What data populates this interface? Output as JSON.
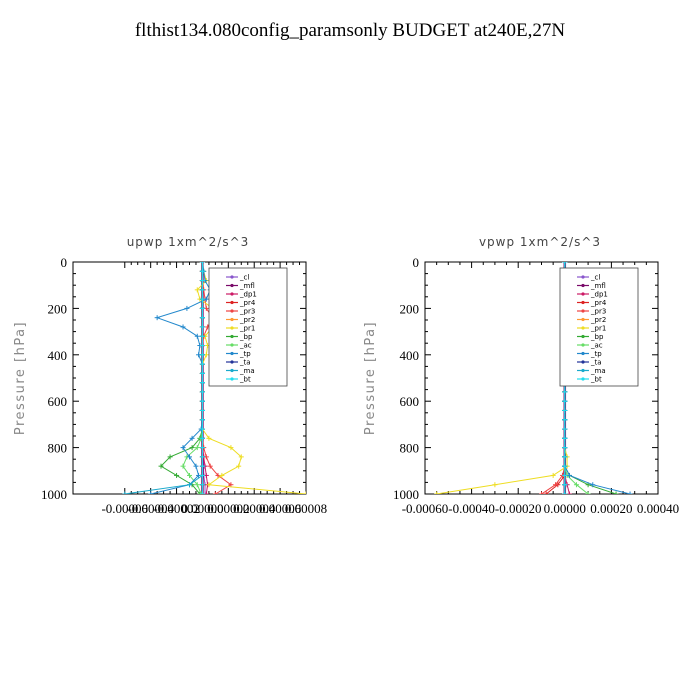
{
  "title": "flthist134.080config_paramsonly  BUDGET at240E,27N",
  "legend_entries": [
    "_cl",
    "_mfl",
    "_dp1",
    "_pr4",
    "_pr3",
    "_pr2",
    "_pr1",
    "_bp",
    "_ac",
    "_tp",
    "_ta",
    "_ma",
    "_bt"
  ],
  "colors": {
    "_cl": "#8855cc",
    "_mfl": "#7a0a6a",
    "_dp1": "#cc1a66",
    "_pr4": "#dd2222",
    "_pr3": "#ee4444",
    "_pr2": "#ff9933",
    "_pr1": "#eedd22",
    "_bp": "#33aa33",
    "_ac": "#66dd66",
    "_tp": "#2288cc",
    "_ta": "#223399",
    "_ma": "#1aaacc",
    "_bt": "#22ddee"
  },
  "chart_data": [
    {
      "type": "line",
      "title": "upwp   1xm^2/s^3",
      "ylabel": "Pressure [hPa]",
      "xlim": [
        -0.0001,
        8e-05
      ],
      "ylim": [
        1000,
        0
      ],
      "xticks": [
        "-0.00006",
        "-0.00004",
        "-0.00002",
        "0.00000",
        "0.00002",
        "0.00004",
        "0.00006",
        "0.00008"
      ],
      "xtick_values": [
        -6e-05,
        -4e-05,
        -2e-05,
        0,
        2e-05,
        4e-05,
        6e-05,
        8e-05
      ],
      "yticks": [
        0,
        200,
        400,
        600,
        800,
        1000
      ],
      "y": [
        0,
        40,
        80,
        120,
        160,
        200,
        240,
        280,
        320,
        360,
        400,
        440,
        480,
        520,
        560,
        600,
        640,
        680,
        720,
        760,
        800,
        840,
        880,
        920,
        960,
        1000
      ],
      "series": [
        {
          "name": "_cl",
          "values": [
            0,
            0,
            0,
            0,
            0,
            0,
            0,
            0,
            0,
            0,
            0,
            0,
            0,
            0,
            0,
            0,
            0,
            0,
            0,
            0,
            0,
            1e-06,
            1e-06,
            1e-06,
            2e-06,
            2e-06
          ]
        },
        {
          "name": "_mfl",
          "values": [
            0,
            0,
            0,
            0,
            0,
            0,
            0,
            0,
            0,
            0,
            0,
            0,
            0,
            0,
            0,
            0,
            0,
            0,
            0,
            0,
            0,
            0,
            0,
            0,
            0,
            0
          ]
        },
        {
          "name": "_dp1",
          "values": [
            0,
            0,
            0,
            0,
            0,
            0,
            0,
            0,
            0,
            0,
            0,
            0,
            0,
            0,
            0,
            0,
            0,
            0,
            0,
            0,
            0,
            1e-06,
            2e-06,
            3e-06,
            4e-06,
            3e-06
          ]
        },
        {
          "name": "_pr4",
          "values": [
            0,
            0,
            0,
            0,
            0,
            0,
            0,
            0,
            0,
            0,
            0,
            0,
            0,
            0,
            0,
            0,
            0,
            0,
            0,
            0,
            0,
            0,
            0,
            0,
            0,
            0
          ]
        },
        {
          "name": "_pr3",
          "values": [
            0,
            0,
            0,
            1e-06,
            2e-06,
            3e-06,
            8e-06,
            4e-06,
            1e-06,
            0,
            0,
            0,
            0,
            0,
            0,
            0,
            0,
            0,
            0,
            0,
            1e-06,
            3e-06,
            6e-06,
            1.2e-05,
            2.2e-05,
            1e-05
          ]
        },
        {
          "name": "_pr2",
          "values": [
            0,
            0,
            0,
            0,
            0,
            0,
            0,
            0,
            0,
            0,
            0,
            0,
            0,
            0,
            0,
            0,
            0,
            0,
            0,
            0,
            0,
            0,
            0,
            0,
            0,
            0
          ]
        },
        {
          "name": "_pr1",
          "values": [
            0,
            1e-06,
            3e-06,
            -4e-06,
            -2e-06,
            8e-06,
            2.5e-05,
            8e-06,
            2e-06,
            4e-06,
            3e-06,
            0,
            0,
            0,
            0,
            0,
            0,
            0,
            0,
            5e-06,
            2.2e-05,
            3e-05,
            2.8e-05,
            1.5e-05,
            5e-06,
            8e-05
          ]
        },
        {
          "name": "_bp",
          "values": [
            0,
            0,
            0,
            0,
            0,
            0,
            0,
            0,
            0,
            0,
            0,
            0,
            0,
            0,
            0,
            0,
            0,
            0,
            0,
            -2e-06,
            -8e-06,
            -2.5e-05,
            -3.2e-05,
            -2e-05,
            -8e-06,
            -2e-06
          ]
        },
        {
          "name": "_ac",
          "values": [
            0,
            0,
            0,
            0,
            0,
            0,
            0,
            0,
            0,
            0,
            0,
            0,
            0,
            0,
            0,
            0,
            0,
            0,
            0,
            -1e-06,
            -4e-06,
            -1.2e-05,
            -1.5e-05,
            -1e-05,
            -4e-06,
            -1e-06
          ]
        },
        {
          "name": "_tp",
          "values": [
            0,
            1e-06,
            2e-06,
            6e-06,
            3e-06,
            -1.2e-05,
            -3.5e-05,
            -1.5e-05,
            -4e-06,
            -2e-06,
            -3e-06,
            0,
            0,
            0,
            0,
            0,
            0,
            0,
            -1e-06,
            -8e-06,
            -1.5e-05,
            -1e-05,
            -5e-06,
            -3e-06,
            -1e-05,
            -4e-05
          ]
        },
        {
          "name": "_ta",
          "values": [
            0,
            0,
            0,
            0,
            0,
            0,
            0,
            0,
            0,
            0,
            0,
            0,
            0,
            0,
            0,
            0,
            0,
            0,
            0,
            0,
            0,
            0,
            0,
            0,
            0,
            0
          ]
        },
        {
          "name": "_ma",
          "values": [
            0,
            0,
            0,
            0,
            0,
            0,
            0,
            0,
            0,
            0,
            0,
            0,
            0,
            0,
            0,
            0,
            0,
            0,
            0,
            0,
            0,
            0,
            0,
            0,
            -1e-05,
            -6e-05
          ]
        },
        {
          "name": "_bt",
          "values": [
            0,
            0,
            0,
            0,
            0,
            0,
            0,
            0,
            0,
            0,
            0,
            0,
            0,
            0,
            0,
            0,
            0,
            0,
            0,
            0,
            0,
            0,
            0,
            0,
            0,
            0
          ]
        }
      ]
    },
    {
      "type": "line",
      "title": "vpwp   1xm^2/s^3",
      "ylabel": "Pressure [hPa]",
      "xlim": [
        -0.0006,
        0.0004
      ],
      "ylim": [
        1000,
        0
      ],
      "xticks": [
        "-0.00060",
        "-0.00040",
        "-0.00020",
        "0.00000",
        "0.00020",
        "0.00040"
      ],
      "xtick_values": [
        -0.0006,
        -0.0004,
        -0.0002,
        0,
        0.0002,
        0.0004
      ],
      "yticks": [
        0,
        200,
        400,
        600,
        800,
        1000
      ],
      "y": [
        0,
        40,
        80,
        120,
        160,
        200,
        240,
        280,
        320,
        360,
        400,
        440,
        480,
        520,
        560,
        600,
        640,
        680,
        720,
        760,
        800,
        840,
        880,
        920,
        960,
        1000
      ],
      "series": [
        {
          "name": "_cl",
          "values": [
            0,
            0,
            0,
            0,
            0,
            0,
            0,
            0,
            0,
            0,
            0,
            0,
            0,
            0,
            0,
            0,
            0,
            0,
            0,
            0,
            0,
            0,
            0,
            0,
            0,
            0
          ]
        },
        {
          "name": "_mfl",
          "values": [
            0,
            0,
            0,
            0,
            0,
            0,
            0,
            0,
            0,
            0,
            0,
            0,
            0,
            0,
            0,
            0,
            0,
            0,
            0,
            0,
            0,
            0,
            0,
            0,
            0,
            0
          ]
        },
        {
          "name": "_dp1",
          "values": [
            0,
            0,
            0,
            0,
            0,
            0,
            0,
            0,
            0,
            0,
            0,
            0,
            0,
            0,
            0,
            0,
            0,
            0,
            0,
            0,
            0,
            0,
            0,
            0,
            1e-05,
            2e-05
          ]
        },
        {
          "name": "_pr4",
          "values": [
            0,
            0,
            0,
            0,
            0,
            0,
            0,
            0,
            0,
            0,
            0,
            0,
            0,
            0,
            0,
            0,
            0,
            0,
            0,
            0,
            0,
            0,
            0,
            0,
            -3e-05,
            -8e-05
          ]
        },
        {
          "name": "_pr3",
          "values": [
            0,
            0,
            0,
            0,
            0,
            0,
            0,
            0,
            0,
            0,
            0,
            0,
            0,
            0,
            0,
            0,
            0,
            0,
            0,
            0,
            0,
            0,
            0,
            -1e-05,
            -4e-05,
            -0.0001
          ]
        },
        {
          "name": "_pr2",
          "values": [
            0,
            0,
            0,
            0,
            0,
            0,
            0,
            0,
            0,
            0,
            0,
            0,
            0,
            0,
            0,
            0,
            0,
            0,
            0,
            0,
            0,
            0,
            0,
            0,
            0,
            0
          ]
        },
        {
          "name": "_pr1",
          "values": [
            0,
            0,
            0,
            0,
            0,
            0,
            0,
            0,
            0,
            0,
            0,
            0,
            0,
            0,
            0,
            0,
            0,
            0,
            0,
            0,
            0,
            1e-05,
            1e-05,
            -5e-05,
            -0.0003,
            -0.00055
          ]
        },
        {
          "name": "_bp",
          "values": [
            0,
            0,
            0,
            0,
            0,
            0,
            0,
            0,
            0,
            0,
            0,
            0,
            0,
            0,
            0,
            0,
            0,
            0,
            0,
            0,
            0,
            0,
            0,
            2e-05,
            0.0001,
            0.00022
          ]
        },
        {
          "name": "_ac",
          "values": [
            0,
            0,
            0,
            0,
            0,
            0,
            0,
            0,
            0,
            0,
            0,
            0,
            0,
            0,
            0,
            0,
            0,
            0,
            0,
            0,
            0,
            0,
            0,
            1e-05,
            5e-05,
            0.0001
          ]
        },
        {
          "name": "_tp",
          "values": [
            0,
            0,
            0,
            0,
            0,
            0,
            0,
            0,
            0,
            0,
            0,
            0,
            0,
            0,
            0,
            0,
            0,
            0,
            0,
            0,
            0,
            0,
            0,
            2e-05,
            0.00012,
            0.00028
          ]
        },
        {
          "name": "_ta",
          "values": [
            0,
            0,
            0,
            0,
            0,
            0,
            0,
            0,
            0,
            0,
            0,
            0,
            0,
            0,
            0,
            0,
            0,
            0,
            0,
            0,
            0,
            0,
            0,
            0,
            0,
            0
          ]
        },
        {
          "name": "_ma",
          "values": [
            0,
            0,
            0,
            0,
            0,
            0,
            0,
            0,
            0,
            0,
            0,
            0,
            0,
            0,
            0,
            0,
            0,
            0,
            0,
            0,
            0,
            0,
            0,
            0,
            0,
            0
          ]
        },
        {
          "name": "_bt",
          "values": [
            0,
            0,
            0,
            0,
            0,
            0,
            0,
            0,
            0,
            0,
            0,
            0,
            0,
            0,
            0,
            0,
            0,
            0,
            0,
            0,
            0,
            0,
            0,
            0,
            0,
            0
          ]
        }
      ]
    }
  ]
}
